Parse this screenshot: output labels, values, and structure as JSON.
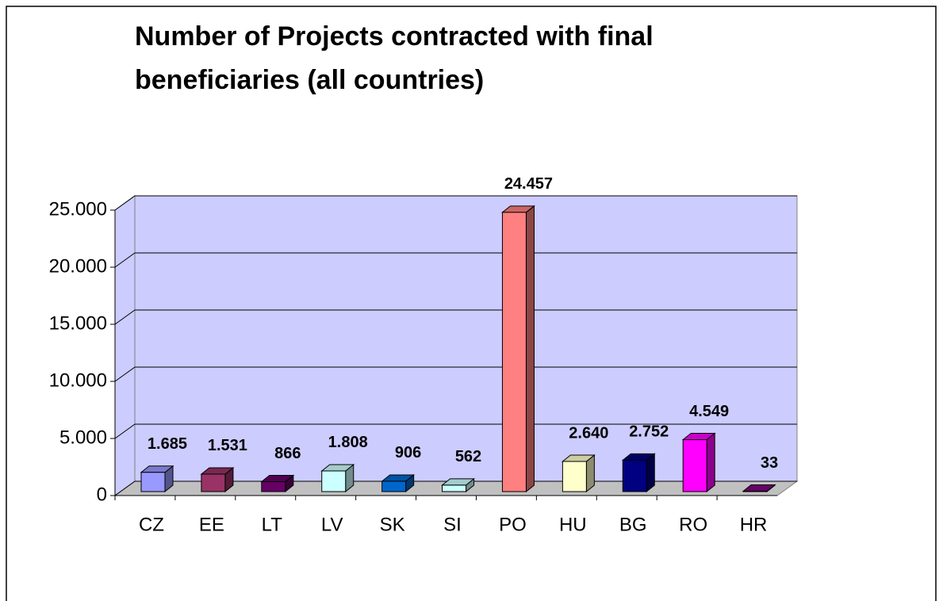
{
  "chart_data": {
    "type": "bar3d",
    "title": [
      "Number of Projects contracted with final",
      "beneficiaries (all countries)"
    ],
    "categories": [
      "CZ",
      "EE",
      "LT",
      "LV",
      "SK",
      "SI",
      "PO",
      "HU",
      "BG",
      "RO",
      "HR"
    ],
    "values": [
      1685,
      1531,
      866,
      1808,
      906,
      562,
      24457,
      2640,
      2752,
      4549,
      33
    ],
    "value_labels": [
      "1.685",
      "1.531",
      "866",
      "1.808",
      "906",
      "562",
      "24.457",
      "2.640",
      "2.752",
      "4.549",
      "33"
    ],
    "colors": [
      "#9999ff",
      "#993366",
      "#660066",
      "#ccffff",
      "#0066cc",
      "#ccffff",
      "#ff8080",
      "#ffffcc",
      "#000080",
      "#ff00ff",
      "#800080"
    ],
    "ylim": [
      0,
      25000
    ],
    "yticks": [
      {
        "value": 0,
        "label": "0"
      },
      {
        "value": 5000,
        "label": "5.000"
      },
      {
        "value": 10000,
        "label": "10.000"
      },
      {
        "value": 15000,
        "label": "15.000"
      },
      {
        "value": 20000,
        "label": "20.000"
      },
      {
        "value": 25000,
        "label": "25.000"
      }
    ],
    "grid": true
  }
}
